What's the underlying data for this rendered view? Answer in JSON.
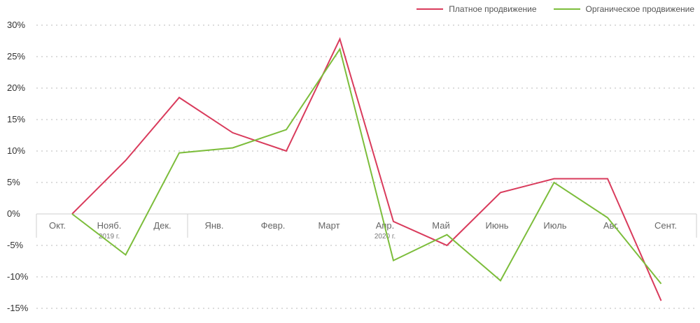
{
  "chart_data": {
    "type": "line",
    "title": "",
    "xlabel": "",
    "ylabel": "",
    "categories": [
      "Окт.",
      "Нояб.",
      "Дек.",
      "Янв.",
      "Февр.",
      "Март",
      "Апр.",
      "Май",
      "Июнь",
      "Июль",
      "Авг.",
      "Сент."
    ],
    "year_labels": [
      {
        "category_index": 1,
        "label": "2019 г."
      },
      {
        "category_index": 6,
        "label": "2020 г."
      }
    ],
    "y_ticks": [
      "30%",
      "25%",
      "20%",
      "15%",
      "10%",
      "5%",
      "0%",
      "-5%",
      "-10%",
      "-15%"
    ],
    "ylim": [
      -15,
      30
    ],
    "y_step": 5,
    "grid": true,
    "legend_position": "top-right",
    "series": [
      {
        "name": "Платное продвижение",
        "color": "#d93b5c",
        "values": [
          0,
          8.5,
          18.5,
          12.9,
          10,
          27.8,
          -1.2,
          -5,
          3.4,
          5.6,
          5.6,
          -13.8
        ]
      },
      {
        "name": "Органическое продвижение",
        "color": "#7cbd3b",
        "values": [
          0,
          -6.5,
          9.7,
          10.5,
          13.4,
          26.2,
          -7.4,
          -3.3,
          -10.6,
          5,
          -0.6,
          -11.1
        ]
      }
    ]
  }
}
